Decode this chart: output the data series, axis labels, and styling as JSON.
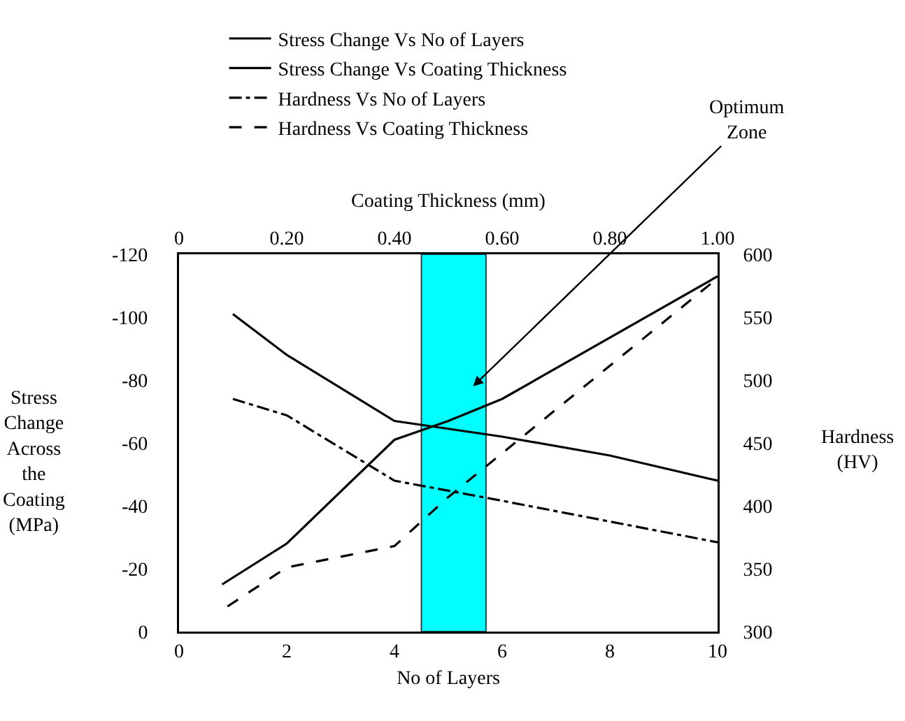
{
  "chart_data": {
    "type": "line",
    "xlabel": "No of Layers",
    "ylabel": "Stress Change Across the Coating (MPa)",
    "y2label": "Hardness (HV)",
    "x2label": "Coating Thickness (mm)",
    "xlim": [
      0,
      10
    ],
    "xticks": [
      0,
      2,
      4,
      6,
      8,
      10
    ],
    "x2lim": [
      0,
      1
    ],
    "x2ticks": [
      0,
      {
        "value": 0.2,
        "label": "0.20"
      },
      {
        "value": 0.4,
        "label": "0.40"
      },
      {
        "value": 0.6,
        "label": "0.60"
      },
      {
        "value": 0.8,
        "label": "0.80"
      },
      {
        "value": 1,
        "label": "1.00"
      }
    ],
    "ylim": [
      0,
      -120
    ],
    "yticks": [
      0,
      -20,
      -40,
      -60,
      -80,
      -100,
      -120
    ],
    "y2lim": [
      300,
      600
    ],
    "y2ticks": [
      300,
      350,
      400,
      450,
      500,
      550,
      600
    ],
    "series": [
      {
        "name": "Stress Change Vs No of Layers",
        "color": "#000000",
        "line_style": "solid",
        "x": [
          1,
          2,
          4,
          6,
          8,
          10
        ],
        "values": [
          -101,
          -88,
          -67,
          -62,
          -56,
          -48
        ]
      },
      {
        "name": "Stress Change Vs Coating Thickness",
        "color": "#000000",
        "line_style": "solid",
        "axis": "x2",
        "x": [
          0.08,
          0.2,
          0.4,
          0.5,
          0.6,
          1.0
        ],
        "values": [
          -15,
          -28,
          -61,
          -67,
          -74,
          -113
        ]
      },
      {
        "name": "Hardness Vs No of Layers",
        "color": "#000000",
        "line_style": "dashdot",
        "axis": "y2",
        "x": [
          1,
          2,
          4,
          6,
          10
        ],
        "values": [
          485,
          472,
          420,
          404,
          371
        ]
      },
      {
        "name": "Hardness Vs Coating Thickness",
        "color": "#000000",
        "line_style": "dashed",
        "axis": "y2",
        "x": [
          0.9,
          2,
          4,
          5,
          10
        ],
        "values": [
          320,
          351,
          368,
          407,
          581
        ]
      }
    ],
    "bands": [
      {
        "axis": "x",
        "from": 4.5,
        "to": 5.7,
        "color": "#00ffff",
        "label": "Optimum Zone"
      }
    ],
    "marker": "none",
    "grid": false,
    "legend": "top"
  }
}
